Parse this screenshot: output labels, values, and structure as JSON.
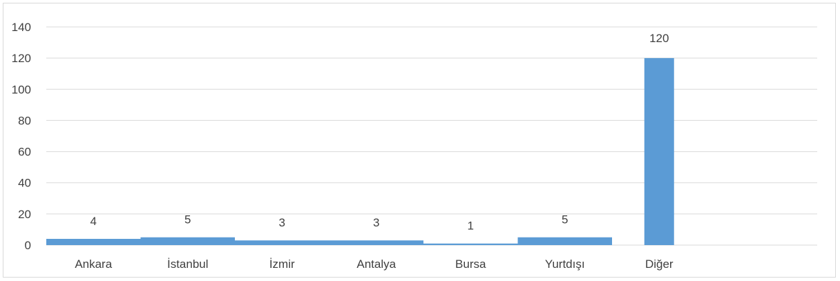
{
  "chart_data": {
    "type": "bar",
    "categories": [
      "Ankara",
      "İstanbul",
      "İzmir",
      "Antalya",
      "Bursa",
      "Yurtdışı",
      "Diğer"
    ],
    "values": [
      4,
      5,
      3,
      3,
      1,
      5,
      120
    ],
    "ylim": [
      0,
      140
    ],
    "yticks": [
      0,
      20,
      40,
      60,
      80,
      100,
      120,
      140
    ],
    "grid": true,
    "bar_color": "#5b9bd5",
    "grid_color": "#d9d9d9",
    "text_color": "#404040"
  }
}
